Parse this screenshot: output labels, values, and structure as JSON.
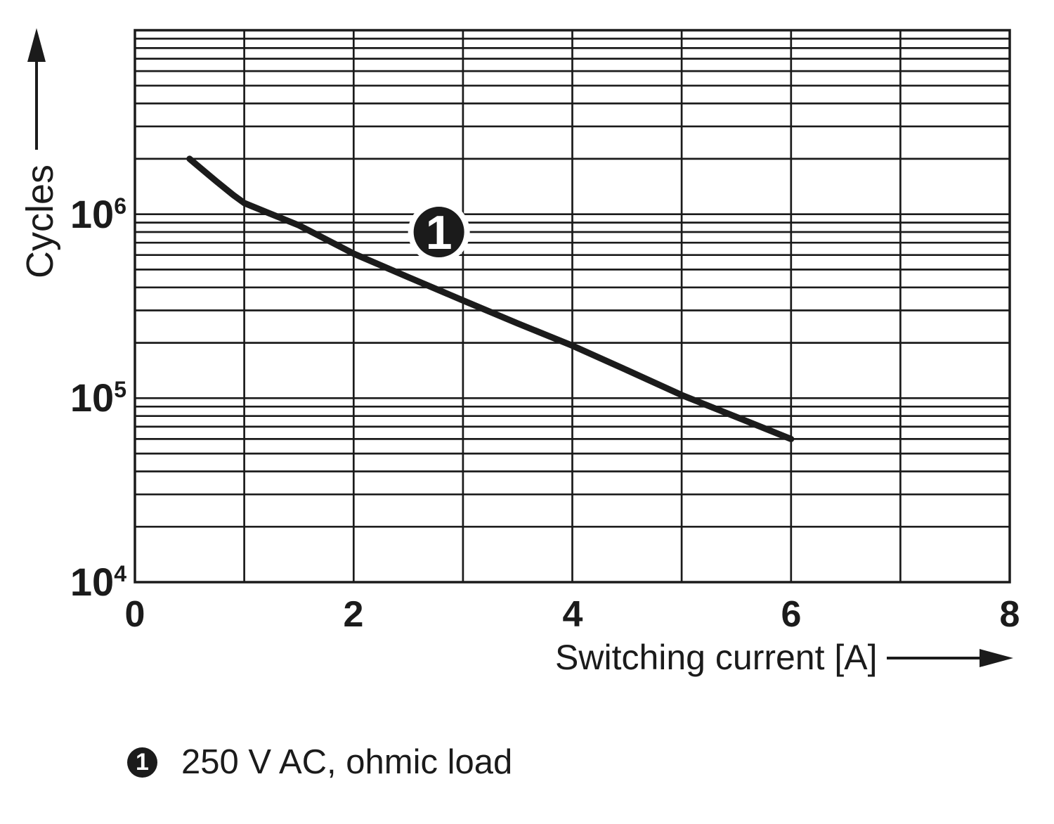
{
  "page": {
    "background": "#ffffff",
    "ink": "#1b1b1b"
  },
  "chart_data": {
    "type": "line",
    "title": "",
    "xlabel": "Switching current [A]",
    "ylabel": "Cycles",
    "grid": "on",
    "x_axis": {
      "min": 0,
      "max": 8,
      "gridline_step": 1,
      "ticks": [
        0,
        2,
        4,
        6,
        8
      ]
    },
    "y_axis": {
      "scale": "log",
      "min": 10000,
      "max": 10000000,
      "ticks": [
        {
          "value": 1000000,
          "base": "10",
          "exp": "6"
        },
        {
          "value": 100000,
          "base": "10",
          "exp": "5"
        },
        {
          "value": 10000,
          "base": "10",
          "exp": "4"
        }
      ]
    },
    "series": [
      {
        "name": "250 V AC, ohmic load",
        "color": "#1b1b1b",
        "marker": {
          "label": "1",
          "x": 2.78,
          "y": 800000
        },
        "points": [
          [
            0.5,
            2000000
          ],
          [
            0.6,
            1780000
          ],
          [
            0.75,
            1500000
          ],
          [
            0.9,
            1270000
          ],
          [
            1,
            1150000
          ],
          [
            1.25,
            1000000
          ],
          [
            1.5,
            870000
          ],
          [
            2,
            610000
          ],
          [
            2.5,
            455000
          ],
          [
            3,
            340000
          ],
          [
            3.5,
            255000
          ],
          [
            4,
            193000
          ],
          [
            4.5,
            142000
          ],
          [
            5,
            104000
          ],
          [
            5.5,
            79000
          ],
          [
            6,
            60000
          ]
        ]
      }
    ],
    "legend": [
      {
        "symbol": "1",
        "label": "250 V AC, ohmic load"
      }
    ],
    "legend_position": "below-left"
  }
}
